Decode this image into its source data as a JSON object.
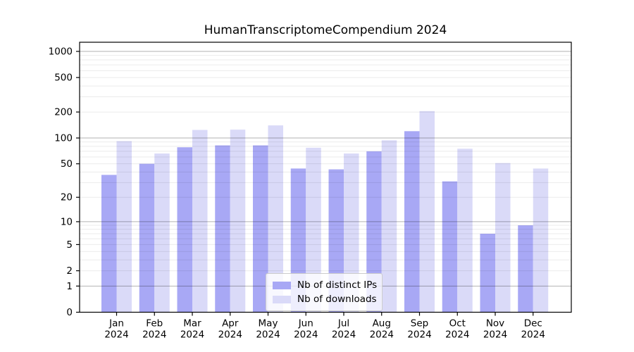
{
  "figure": {
    "title": "HumanTranscriptomeCompendium 2024",
    "background": "#ffffff"
  },
  "chart_data": {
    "type": "bar",
    "title": "HumanTranscriptomeCompendium 2024",
    "scale": "log10(1+x)",
    "categories": [
      "Jan",
      "Feb",
      "Mar",
      "Apr",
      "May",
      "Jun",
      "Jul",
      "Aug",
      "Sep",
      "Oct",
      "Nov",
      "Dec"
    ],
    "category_year_label": "2024",
    "series": [
      {
        "name": "Nb of distinct IPs",
        "color": "#a8a8f5",
        "values": [
          37,
          50,
          78,
          82,
          82,
          44,
          43,
          70,
          120,
          31,
          7,
          9
        ]
      },
      {
        "name": "Nb of downloads",
        "color": "#dadaf8",
        "values": [
          92,
          66,
          124,
          125,
          140,
          77,
          66,
          94,
          205,
          75,
          51,
          44
        ]
      }
    ],
    "yticks": [
      0,
      1,
      2,
      5,
      10,
      20,
      50,
      100,
      200,
      500,
      1000
    ],
    "ylim": [
      0,
      1270
    ],
    "grid": "both",
    "legend": {
      "position": "lower-center",
      "labels": [
        "Nb of distinct IPs",
        "Nb of downloads"
      ],
      "background": "rgba(255,255,255,0.8)",
      "border_color": "#cccccc"
    },
    "colors": {
      "grid_major": "#b3b3b3",
      "grid_minor": "#ebebeb",
      "axis": "#000000",
      "text": "#000000"
    }
  }
}
